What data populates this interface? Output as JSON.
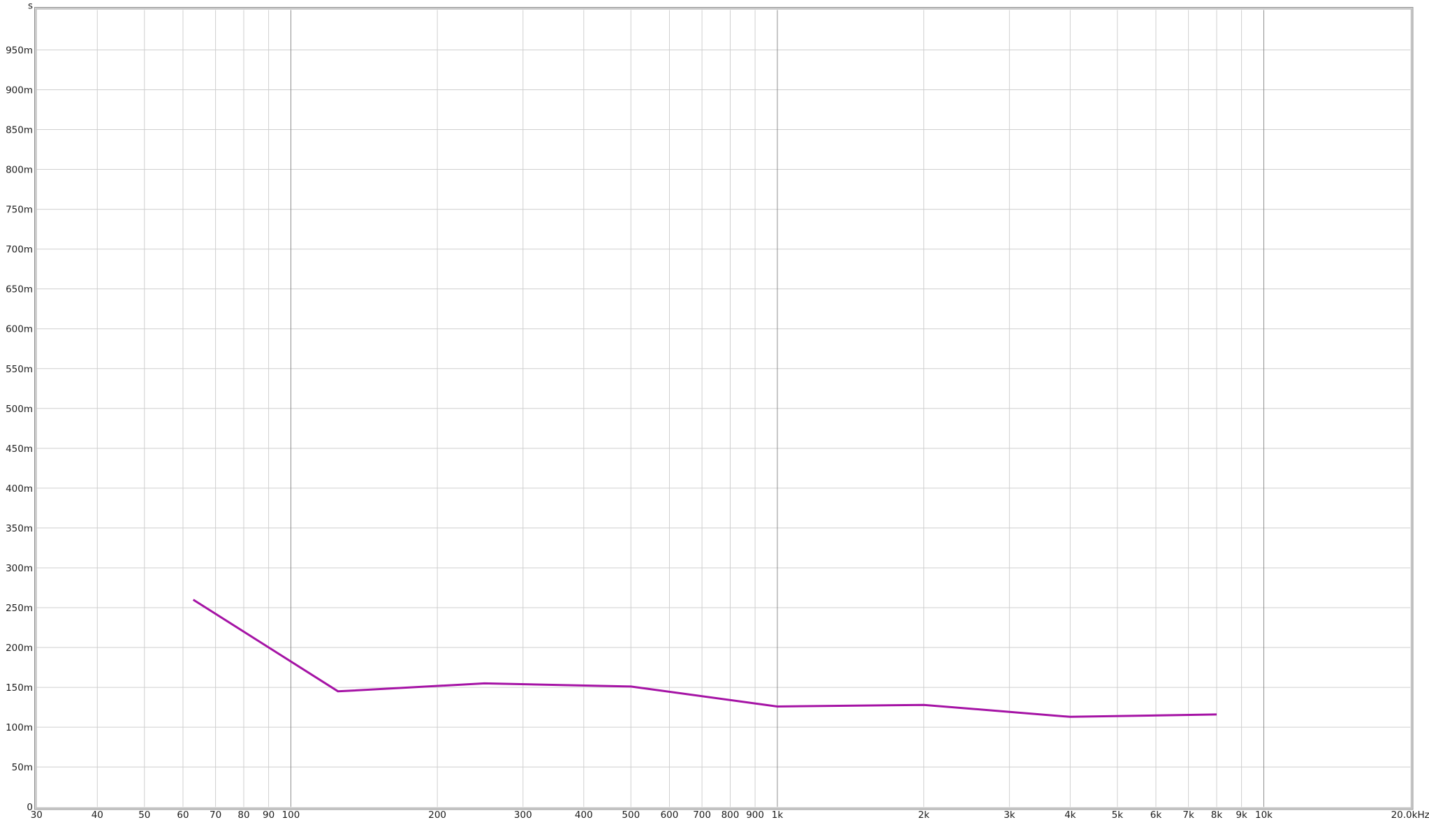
{
  "chart_data": {
    "type": "line",
    "title": "",
    "x_axis": {
      "scale": "log",
      "min_hz": 30,
      "max_hz": 20000,
      "ticks": [
        {
          "f": 30,
          "label": "30",
          "border": true
        },
        {
          "f": 40,
          "label": "40"
        },
        {
          "f": 50,
          "label": "50"
        },
        {
          "f": 60,
          "label": "60"
        },
        {
          "f": 70,
          "label": "70"
        },
        {
          "f": 80,
          "label": "80"
        },
        {
          "f": 90,
          "label": "90"
        },
        {
          "f": 100,
          "label": "100",
          "major": true
        },
        {
          "f": 200,
          "label": "200"
        },
        {
          "f": 300,
          "label": "300"
        },
        {
          "f": 400,
          "label": "400"
        },
        {
          "f": 500,
          "label": "500"
        },
        {
          "f": 600,
          "label": "600"
        },
        {
          "f": 700,
          "label": "700"
        },
        {
          "f": 800,
          "label": "800"
        },
        {
          "f": 900,
          "label": "900"
        },
        {
          "f": 1000,
          "label": "1k",
          "major": true
        },
        {
          "f": 2000,
          "label": "2k"
        },
        {
          "f": 3000,
          "label": "3k"
        },
        {
          "f": 4000,
          "label": "4k"
        },
        {
          "f": 5000,
          "label": "5k"
        },
        {
          "f": 6000,
          "label": "6k"
        },
        {
          "f": 7000,
          "label": "7k"
        },
        {
          "f": 8000,
          "label": "8k"
        },
        {
          "f": 9000,
          "label": "9k"
        },
        {
          "f": 10000,
          "label": "10k",
          "major": true
        },
        {
          "f": 20000,
          "label": "20.0kHz",
          "border": true
        }
      ]
    },
    "y_axis": {
      "min_s": 0,
      "max_s": 1,
      "ticks": [
        {
          "v": 1.0,
          "label": "s",
          "border": true
        },
        {
          "v": 0.95,
          "label": "950m"
        },
        {
          "v": 0.9,
          "label": "900m"
        },
        {
          "v": 0.85,
          "label": "850m"
        },
        {
          "v": 0.8,
          "label": "800m"
        },
        {
          "v": 0.75,
          "label": "750m"
        },
        {
          "v": 0.7,
          "label": "700m"
        },
        {
          "v": 0.65,
          "label": "650m"
        },
        {
          "v": 0.6,
          "label": "600m"
        },
        {
          "v": 0.55,
          "label": "550m"
        },
        {
          "v": 0.5,
          "label": "500m"
        },
        {
          "v": 0.45,
          "label": "450m"
        },
        {
          "v": 0.4,
          "label": "400m"
        },
        {
          "v": 0.35,
          "label": "350m"
        },
        {
          "v": 0.3,
          "label": "300m"
        },
        {
          "v": 0.25,
          "label": "250m"
        },
        {
          "v": 0.2,
          "label": "200m"
        },
        {
          "v": 0.15,
          "label": "150m"
        },
        {
          "v": 0.1,
          "label": "100m"
        },
        {
          "v": 0.05,
          "label": "50m"
        },
        {
          "v": 0.0,
          "label": "0",
          "border": true
        }
      ]
    },
    "grid": {
      "on": true
    },
    "legend": {
      "visible": false
    },
    "series": [
      {
        "color": "#a513a5",
        "points_hz_s": [
          [
            63,
            0.26
          ],
          [
            125,
            0.145
          ],
          [
            250,
            0.155
          ],
          [
            500,
            0.151
          ],
          [
            1000,
            0.126
          ],
          [
            2000,
            0.128
          ],
          [
            4000,
            0.113
          ],
          [
            8000,
            0.116
          ]
        ]
      }
    ],
    "colors": {
      "background": "#ffffff",
      "grid_minor": "#cfcfcf",
      "grid_major": "#8f8f8f",
      "frame_outer": "#929292",
      "frame_body": "#c4c4c4",
      "text": "#1b1b1b"
    }
  }
}
